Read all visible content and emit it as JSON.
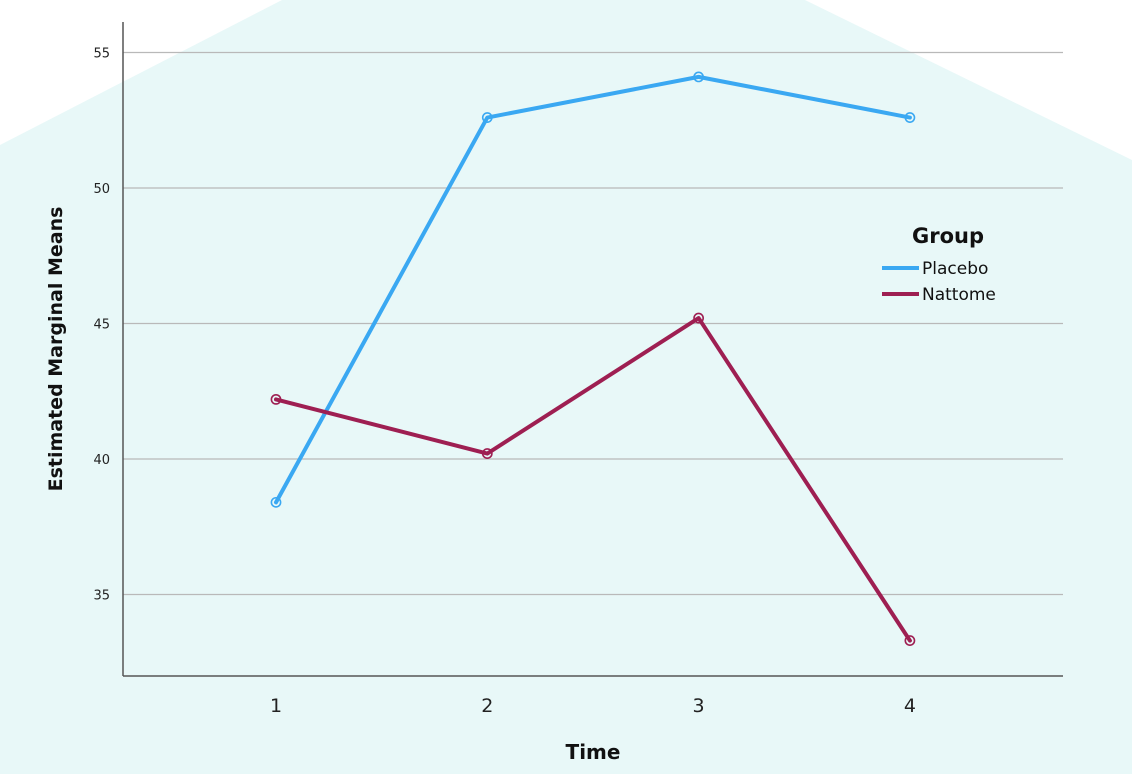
{
  "chart_data": {
    "type": "line",
    "title": "",
    "xlabel": "Time",
    "ylabel": "Estimated Marginal Means",
    "categories": [
      "1",
      "2",
      "3",
      "4"
    ],
    "y_ticks": [
      "35",
      "40",
      "45",
      "50",
      "55"
    ],
    "ylim": [
      32.2,
      56
    ],
    "grid": true,
    "legend": {
      "title": "Group",
      "placement": "right"
    },
    "series": [
      {
        "name": "Placebo",
        "color": "#3aa8f2",
        "values": [
          38.4,
          52.6,
          54.1,
          52.6
        ]
      },
      {
        "name": "Nattome",
        "color": "#9e1f52",
        "values": [
          42.2,
          40.2,
          45.2,
          33.3
        ]
      }
    ],
    "background_color": "#e8f8f8"
  }
}
